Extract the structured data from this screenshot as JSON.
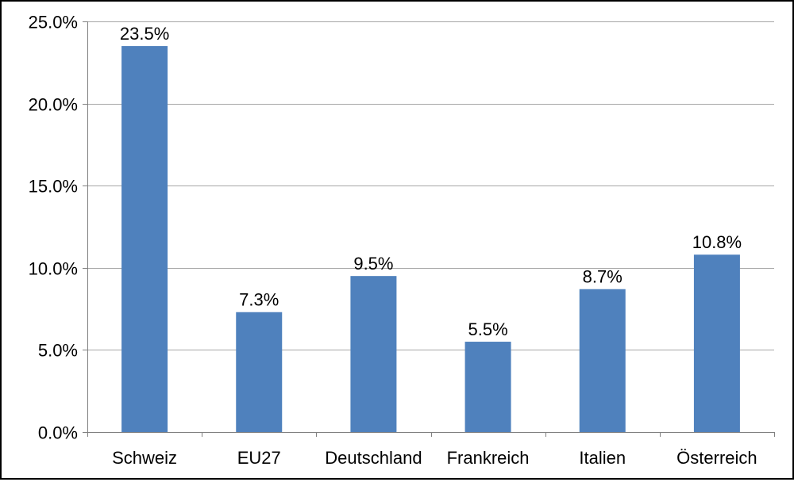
{
  "chart_data": {
    "type": "bar",
    "title": "",
    "xlabel": "",
    "ylabel": "",
    "categories": [
      "Schweiz",
      "EU27",
      "Deutschland",
      "Frankreich",
      "Italien",
      "Österreich"
    ],
    "values": [
      23.5,
      7.3,
      9.5,
      5.5,
      8.7,
      10.8
    ],
    "value_labels": [
      "23.5%",
      "7.3%",
      "9.5%",
      "5.5%",
      "8.7%",
      "10.8%"
    ],
    "ylim": [
      0,
      25
    ],
    "yticks": [
      0,
      5,
      10,
      15,
      20,
      25
    ],
    "ytick_labels": [
      "0.0%",
      "5.0%",
      "10.0%",
      "15.0%",
      "20.0%",
      "25.0%"
    ],
    "grid": true,
    "legend": "none",
    "colors": {
      "bar": "#4F81BD",
      "grid": "#A6A6A6",
      "axis": "#808080"
    }
  }
}
